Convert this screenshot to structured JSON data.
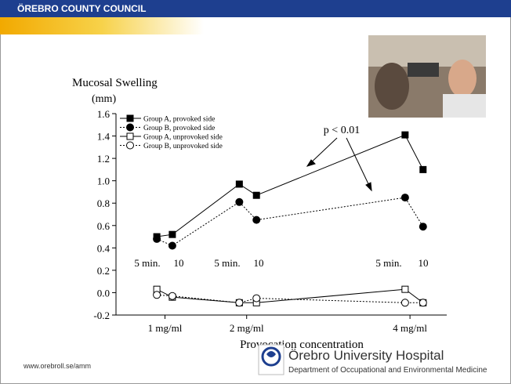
{
  "header": {
    "title": "ÖREBRO COUNTY COUNCIL"
  },
  "footer": {
    "url": "www.orebroll.se/amm",
    "logo_name": "Örebro University Hospital",
    "logo_department": "Department of Occupational and Environmental Medicine"
  },
  "chart_data": {
    "type": "line",
    "y_label": "Mucosal Swelling",
    "y_unit": "(mm)",
    "x_label": "Provocation concentration",
    "annotation": "p < 0.01",
    "interval_labels": [
      "5 min.",
      "10",
      "5 min.",
      "10",
      "5 min.",
      "10"
    ],
    "x": [
      0.9,
      1.09,
      1.91,
      2.12,
      3.94,
      4.16
    ],
    "xlim": [
      0.4,
      4.45
    ],
    "xticks": [
      {
        "value": 1,
        "label": "1 mg/ml"
      },
      {
        "value": 2,
        "label": "2 mg/ml"
      },
      {
        "value": 4,
        "label": "4 mg/ml"
      }
    ],
    "ylim": [
      -0.2,
      1.6
    ],
    "yticks": [
      -0.2,
      {
        "value": 0,
        "label": "0.0"
      },
      0.2,
      0.4,
      0.6,
      0.8,
      {
        "value": 1,
        "label": "1.0"
      },
      1.2,
      1.4,
      1.6
    ],
    "grid": false,
    "legend": "upper left",
    "series": [
      {
        "name": "Group A, provoked side",
        "color": "#000000",
        "line_style": "solid",
        "marker": "square",
        "filled": true,
        "values": [
          0.5,
          0.52,
          0.97,
          0.87,
          1.41,
          1.1
        ]
      },
      {
        "name": "Group B, provoked side",
        "color": "#000000",
        "line_style": "dotted",
        "marker": "circle",
        "filled": true,
        "values": [
          0.48,
          0.42,
          0.81,
          0.65,
          0.85,
          0.59
        ]
      },
      {
        "name": "Group A, unprovoked side",
        "color": "#000000",
        "line_style": "solid",
        "marker": "square",
        "filled": false,
        "values": [
          0.03,
          -0.04,
          -0.09,
          -0.09,
          0.03,
          -0.09
        ]
      },
      {
        "name": "Group B, unprovoked side",
        "color": "#000000",
        "line_style": "dotted",
        "marker": "circle",
        "filled": false,
        "values": [
          -0.02,
          -0.03,
          -0.09,
          -0.05,
          -0.09,
          -0.09
        ]
      }
    ]
  }
}
